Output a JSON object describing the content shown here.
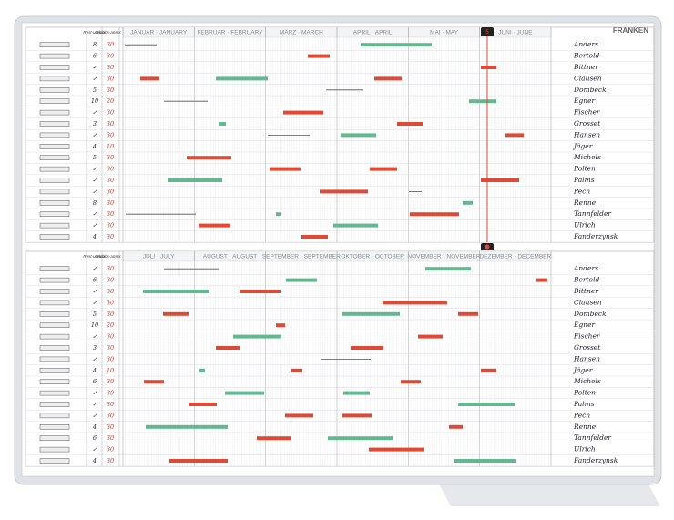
{
  "brand": "FRANKEN",
  "today_marker": "5",
  "top": {
    "months": [
      "JANUAR · JANUARY",
      "FEBRUAR · FEBRUARY",
      "MÄRZ · MARCH",
      "APRIL · APRIL",
      "MAI · MAY",
      "JUNI · JUNE"
    ],
    "columns": [
      "Rest-urlaub",
      "Urlaubs-anspr."
    ],
    "rows": [
      {
        "name": "Anders",
        "rest": "8",
        "entitle": "30"
      },
      {
        "name": "Bertold",
        "rest": "6",
        "entitle": "30"
      },
      {
        "name": "Bittner",
        "rest": "✓",
        "entitle": "30"
      },
      {
        "name": "Clausen",
        "rest": "✓",
        "entitle": "30"
      },
      {
        "name": "Dombeck",
        "rest": "5",
        "entitle": "30"
      },
      {
        "name": "Egner",
        "rest": "10",
        "entitle": "20"
      },
      {
        "name": "Fischer",
        "rest": "✓",
        "entitle": "30"
      },
      {
        "name": "Grosset",
        "rest": "3",
        "entitle": "30"
      },
      {
        "name": "Hansen",
        "rest": "✓",
        "entitle": "30"
      },
      {
        "name": "Jäger",
        "rest": "4",
        "entitle": "10"
      },
      {
        "name": "Michels",
        "rest": "5",
        "entitle": "30"
      },
      {
        "name": "Polten",
        "rest": "✓",
        "entitle": "30"
      },
      {
        "name": "Palms",
        "rest": "✓",
        "entitle": "30"
      },
      {
        "name": "Pech",
        "rest": "✓",
        "entitle": "30"
      },
      {
        "name": "Renne",
        "rest": "8",
        "entitle": "30"
      },
      {
        "name": "Tannfelder",
        "rest": "✓",
        "entitle": "30"
      },
      {
        "name": "Ulrich",
        "rest": "✓",
        "entitle": "30"
      },
      {
        "name": "Fanderzynsk",
        "rest": "4",
        "entitle": "30"
      }
    ]
  },
  "bottom": {
    "months": [
      "JULI · JULY",
      "AUGUST · AUGUST",
      "SEPTEMBER · SEPTEMBER",
      "OKTOBER · OCTOBER",
      "NOVEMBER · NOVEMBER",
      "DEZEMBER · DECEMBER"
    ],
    "columns": [
      "Rest-urlaub",
      "Urlaubs-anspr."
    ],
    "rows": [
      {
        "name": "Anders",
        "rest": "✓",
        "entitle": "30"
      },
      {
        "name": "Bertold",
        "rest": "6",
        "entitle": "30"
      },
      {
        "name": "Bittner",
        "rest": "✓",
        "entitle": "30"
      },
      {
        "name": "Clausen",
        "rest": "✓",
        "entitle": "30"
      },
      {
        "name": "Dombeck",
        "rest": "5",
        "entitle": "30"
      },
      {
        "name": "Egner",
        "rest": "10",
        "entitle": "20"
      },
      {
        "name": "Fischer",
        "rest": "✓",
        "entitle": "30"
      },
      {
        "name": "Grosset",
        "rest": "3",
        "entitle": "30"
      },
      {
        "name": "Hansen",
        "rest": "✓",
        "entitle": "30"
      },
      {
        "name": "Jäger",
        "rest": "4",
        "entitle": "10"
      },
      {
        "name": "Michels",
        "rest": "6",
        "entitle": "30"
      },
      {
        "name": "Polten",
        "rest": "✓",
        "entitle": "30"
      },
      {
        "name": "Palms",
        "rest": "✓",
        "entitle": "30"
      },
      {
        "name": "Pech",
        "rest": "✓",
        "entitle": "30"
      },
      {
        "name": "Renne",
        "rest": "4",
        "entitle": "30"
      },
      {
        "name": "Tannfelder",
        "rest": "6",
        "entitle": "30"
      },
      {
        "name": "Ulrich",
        "rest": "✓",
        "entitle": "30"
      },
      {
        "name": "Fanderzynsk",
        "rest": "4",
        "entitle": "30"
      }
    ]
  }
}
